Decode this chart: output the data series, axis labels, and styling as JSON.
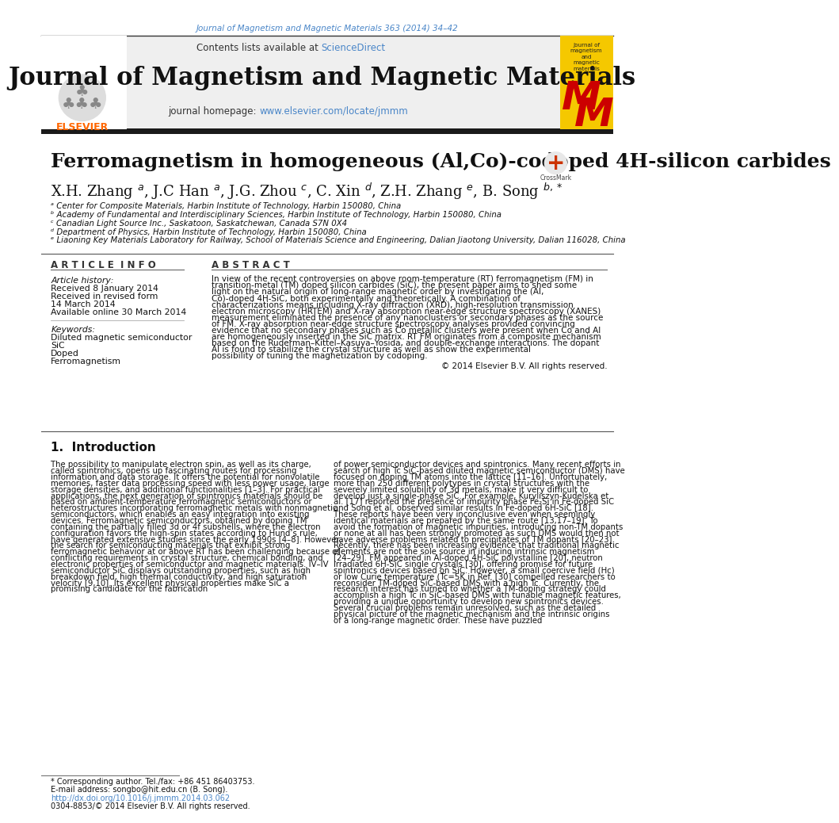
{
  "page_bg": "#ffffff",
  "top_journal_ref": "Journal of Magnetism and Magnetic Materials 363 (2014) 34–42",
  "top_journal_ref_color": "#4a86c8",
  "contents_text": "Contents lists available at ",
  "sciencedirect_text": "ScienceDirect",
  "sciencedirect_color": "#4a86c8",
  "journal_title": "Journal of Magnetism and Magnetic Materials",
  "journal_title_size": 22,
  "homepage_label": "journal homepage: ",
  "homepage_url": "www.elsevier.com/locate/jmmm",
  "homepage_url_color": "#4a86c8",
  "paper_title": "Ferromagnetism in homogeneous (Al,Co)-codoped 4H-silicon carbides",
  "paper_title_size": 18,
  "affil_a": "ᵃ Center for Composite Materials, Harbin Institute of Technology, Harbin 150080, China",
  "affil_b": "ᵇ Academy of Fundamental and Interdisciplinary Sciences, Harbin Institute of Technology, Harbin 150080, China",
  "affil_c": "ᶜ Canadian Light Source Inc., Saskatoon, Saskatchewan, Canada S7N 0X4",
  "affil_d": "ᵈ Department of Physics, Harbin Institute of Technology, Harbin 150080, China",
  "affil_e": "ᵉ Liaoning Key Materials Laboratory for Railway, School of Materials Science and Engineering, Dalian Jiaotong University, Dalian 116028, China",
  "affil_size": 7.5,
  "article_info_header": "A R T I C L E  I N F O",
  "abstract_header": "A B S T R A C T",
  "article_history_label": "Article history:",
  "received": "Received 8 January 2014",
  "revised": "Received in revised form",
  "revised2": "14 March 2014",
  "available": "Available online 30 March 2014",
  "keywords_label": "Keywords:",
  "keyword1": "Diluted magnetic semiconductor",
  "keyword2": "SiC",
  "keyword3": "Doped",
  "keyword4": "Ferromagnetism",
  "abstract_text": "In view of the recent controversies on above room-temperature (RT) ferromagnetism (FM) in transition-metal (TM) doped silicon carbides (SiC), the present paper aims to shed some light on the natural origin of long-range magnetic order by investigating the (Al, Co)-doped 4H-SiC, both experimentally and theoretically. A combination of characterizations means including X-ray diffraction (XRD), high-resolution transmission electron microscopy (HRTEM) and X-ray absorption near-edge structure spectroscopy (XANES) measurement eliminated the presence of any nanoclusters or secondary phases as the source of FM. X-ray absorption near-edge structure spectroscopy analyses provided convincing evidence that no secondary phases such as Co metallic clusters were present when Co and Al are homogeneously inserted in the SiC matrix. RT FM originates from a composite mechanism based on the Ruderman–Kittel–Kasuya–Yosida, and double-exchange interactions. The dopant Al is found to stabilize the crystal structure as well as show the experimental possibility of tuning the magnetization by codoping.",
  "copyright_text": "© 2014 Elsevier B.V. All rights reserved.",
  "intro_header": "1.  Introduction",
  "intro_col1": "The possibility to manipulate electron spin, as well as its charge, called spintronics, opens up fascinating routes for processing information and data storage. It offers the potential for nonvolatile memories, faster data processing speed with less power usage, large storage densities, and additional functionalities [1–3]. For practical applications, the next generation of spintronics materials should be based on ambient-temperature ferromagnetic semiconductors or heterostructures incorporating ferromagnetic metals with nonmagnetic semiconductors, which enables an easy integration into existing devices. Ferromagnetic semiconductors, obtained by doping TM containing the partially filled 3d or 4f subshells, where the electron configuration favors the high-spin states according to Hund’s rule, have generated extensive studies since the early 1990s [4–8]. However, the search for semiconducting materials that exhibit strong ferromagnetic behavior at or above RT has been challenging because of conflicting requirements in crystal structure, chemical bonding, and electronic properties of semiconductor and magnetic materials. IV–IV semiconductor SiC displays outstanding properties, such as high breakdown field, high thermal conductivity, and high saturation velocity [9,10]. Its excellent physical properties make SiC a promising candidate for the fabrication",
  "intro_col2": "of power semiconductor devices and spintronics. Many recent efforts in search of high Tc SiC-based diluted magnetic semiconductor (DMS) have focused on doping TM atoms into the lattice [11–16]. Unfortunately, more than 250 different polytypes in crystal structures with the severely limited solubility of 3d metals, make it very difficult to develop just a single-phase SiC. For example, Kuryliszyn-Kudelska et al. [17] reported the presence of impurity phase Fe₂Si in Fe-doped SiC and Song et al. observed similar results in Fe-doped 6H-SiC [18]. These reports have been very inconclusive even when seemingly identical materials are prepared by the same route [13,17–19]. To avoid the formation of magnetic impurities, introducing non-TM dopants or none at all has been strongly promoted as such DMS would then not have adverse problems related to precipitates of TM dopants [20–23]. Recently, there has been increasing evidence that traditional magnetic elements are not the sole source in inducing intrinsic magnetism [24–29]. FM appeared in Al-doped 4H-SiC polystalline [20], neutron irradiated 6H-SiC single crystals [30], offering promise for future spintronics devices based on SiC. However, a small coercive field (Hc) or low Curie temperature (Tc=5K in Ref. [30] compelled researchers to reconsider TM-doped SiC-based DMS with a high Tc. Currently, the research interest has turned to whether a TM-doping strategy could accomplish a high Tc in SiC-based DMS with tunable magnetic features, providing a unique opportunity to develop new spintronics devices. Several crucial problems remain unresolved, such as the detailed physical picture of the magnetic mechanism and the intrinsic origins of a long-range magnetic order. These have puzzled",
  "footnote_corresponding": "* Corresponding author. Tel./fax: +86 451 86403753.",
  "footnote_email": "E-mail address: songbo@hit.edu.cn (B. Song).",
  "footnote_doi": "http://dx.doi.org/10.1016/j.jmmm.2014.03.062",
  "footnote_issn": "0304-8853/© 2014 Elsevier B.V. All rights reserved.",
  "link_color": "#4a86c8",
  "elsevier_logo_color": "#ff6600",
  "mm_box_color": "#f5c800",
  "mm_letter_color": "#cc0000",
  "thick_rule_color": "#1a1a1a"
}
